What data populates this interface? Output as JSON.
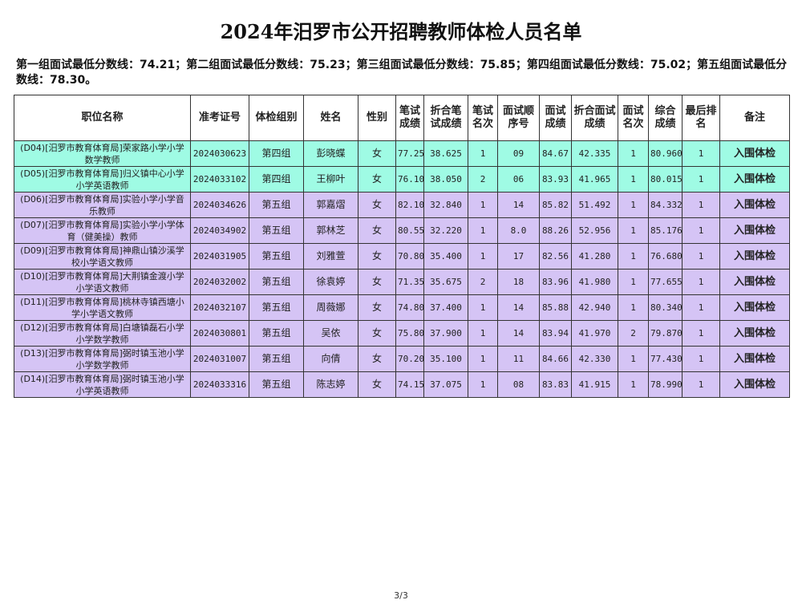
{
  "title": "2024年汨罗市公开招聘教师体检人员名单",
  "note": "第一组面试最低分数线：74.21；第二组面试最低分数线：75.23；第三组面试最低分数线：75.85；第四组面试最低分数线：75.02；第五组面试最低分数线：78.30。",
  "headers": [
    "职位名称",
    "准考证号",
    "体检组别",
    "姓名",
    "性别",
    "笔试成绩",
    "折合笔试成绩",
    "笔试名次",
    "面试顺序号",
    "面试成绩",
    "折合面试成绩",
    "面试名次",
    "综合成绩",
    "最后排名",
    "备注"
  ],
  "rows": [
    [
      "(D04)[汨罗市教育体育局]荣家路小学小学数学教师",
      "2024030623",
      "第四组",
      "彭晓蝶",
      "女",
      "77.25",
      "38.625",
      "1",
      "09",
      "84.67",
      "42.335",
      "1",
      "80.960",
      "1",
      "入围体检"
    ],
    [
      "(D05)[汨罗市教育体育局]归义镇中心小学小学英语教师",
      "2024033102",
      "第四组",
      "王柳叶",
      "女",
      "76.10",
      "38.050",
      "2",
      "06",
      "83.93",
      "41.965",
      "1",
      "80.015",
      "1",
      "入围体检"
    ],
    [
      "(D06)[汨罗市教育体育局]实验小学小学音乐教师",
      "2024034626",
      "第五组",
      "郭嘉熠",
      "女",
      "82.10",
      "32.840",
      "1",
      "14",
      "85.82",
      "51.492",
      "1",
      "84.332",
      "1",
      "入围体检"
    ],
    [
      "(D07)[汨罗市教育体育局]实验小学小学体育（健美操）教师",
      "2024034902",
      "第五组",
      "郭林芝",
      "女",
      "80.55",
      "32.220",
      "1",
      "8.0",
      "88.26",
      "52.956",
      "1",
      "85.176",
      "1",
      "入围体检"
    ],
    [
      "(D09)[汨罗市教育体育局]神鼎山镇沙溪学校小学语文教师",
      "2024031905",
      "第五组",
      "刘雅萱",
      "女",
      "70.80",
      "35.400",
      "1",
      "17",
      "82.56",
      "41.280",
      "1",
      "76.680",
      "1",
      "入围体检"
    ],
    [
      "(D10)[汨罗市教育体育局]大荆镇金渡小学小学语文教师",
      "2024032002",
      "第五组",
      "徐袁婷",
      "女",
      "71.35",
      "35.675",
      "2",
      "18",
      "83.96",
      "41.980",
      "1",
      "77.655",
      "1",
      "入围体检"
    ],
    [
      "(D11)[汨罗市教育体育局]桃林寺镇西塘小学小学语文教师",
      "2024032107",
      "第五组",
      "周薇娜",
      "女",
      "74.80",
      "37.400",
      "1",
      "14",
      "85.88",
      "42.940",
      "1",
      "80.340",
      "1",
      "入围体检"
    ],
    [
      "(D12)[汨罗市教育体育局]白塘镇磊石小学小学数学教师",
      "2024030801",
      "第五组",
      "吴依",
      "女",
      "75.80",
      "37.900",
      "1",
      "14",
      "83.94",
      "41.970",
      "2",
      "79.870",
      "1",
      "入围体检"
    ],
    [
      "(D13)[汨罗市教育体育局]弼时镇玉池小学小学数学教师",
      "2024031007",
      "第五组",
      "向倩",
      "女",
      "70.20",
      "35.100",
      "1",
      "11",
      "84.66",
      "42.330",
      "1",
      "77.430",
      "1",
      "入围体检"
    ],
    [
      "(D14)[汨罗市教育体育局]弼时镇玉池小学小学英语教师",
      "2024033316",
      "第五组",
      "陈志婷",
      "女",
      "74.15",
      "37.075",
      "1",
      "08",
      "83.83",
      "41.915",
      "1",
      "78.990",
      "1",
      "入围体检"
    ]
  ],
  "row_groups": [
    "第四组",
    "第四组",
    "第五组",
    "第五组",
    "第五组",
    "第五组",
    "第五组",
    "第五组",
    "第五组",
    "第五组"
  ],
  "colors": {
    "group4": "#9ffbe4",
    "group5": "#d5c4f5"
  },
  "page": "3/3"
}
